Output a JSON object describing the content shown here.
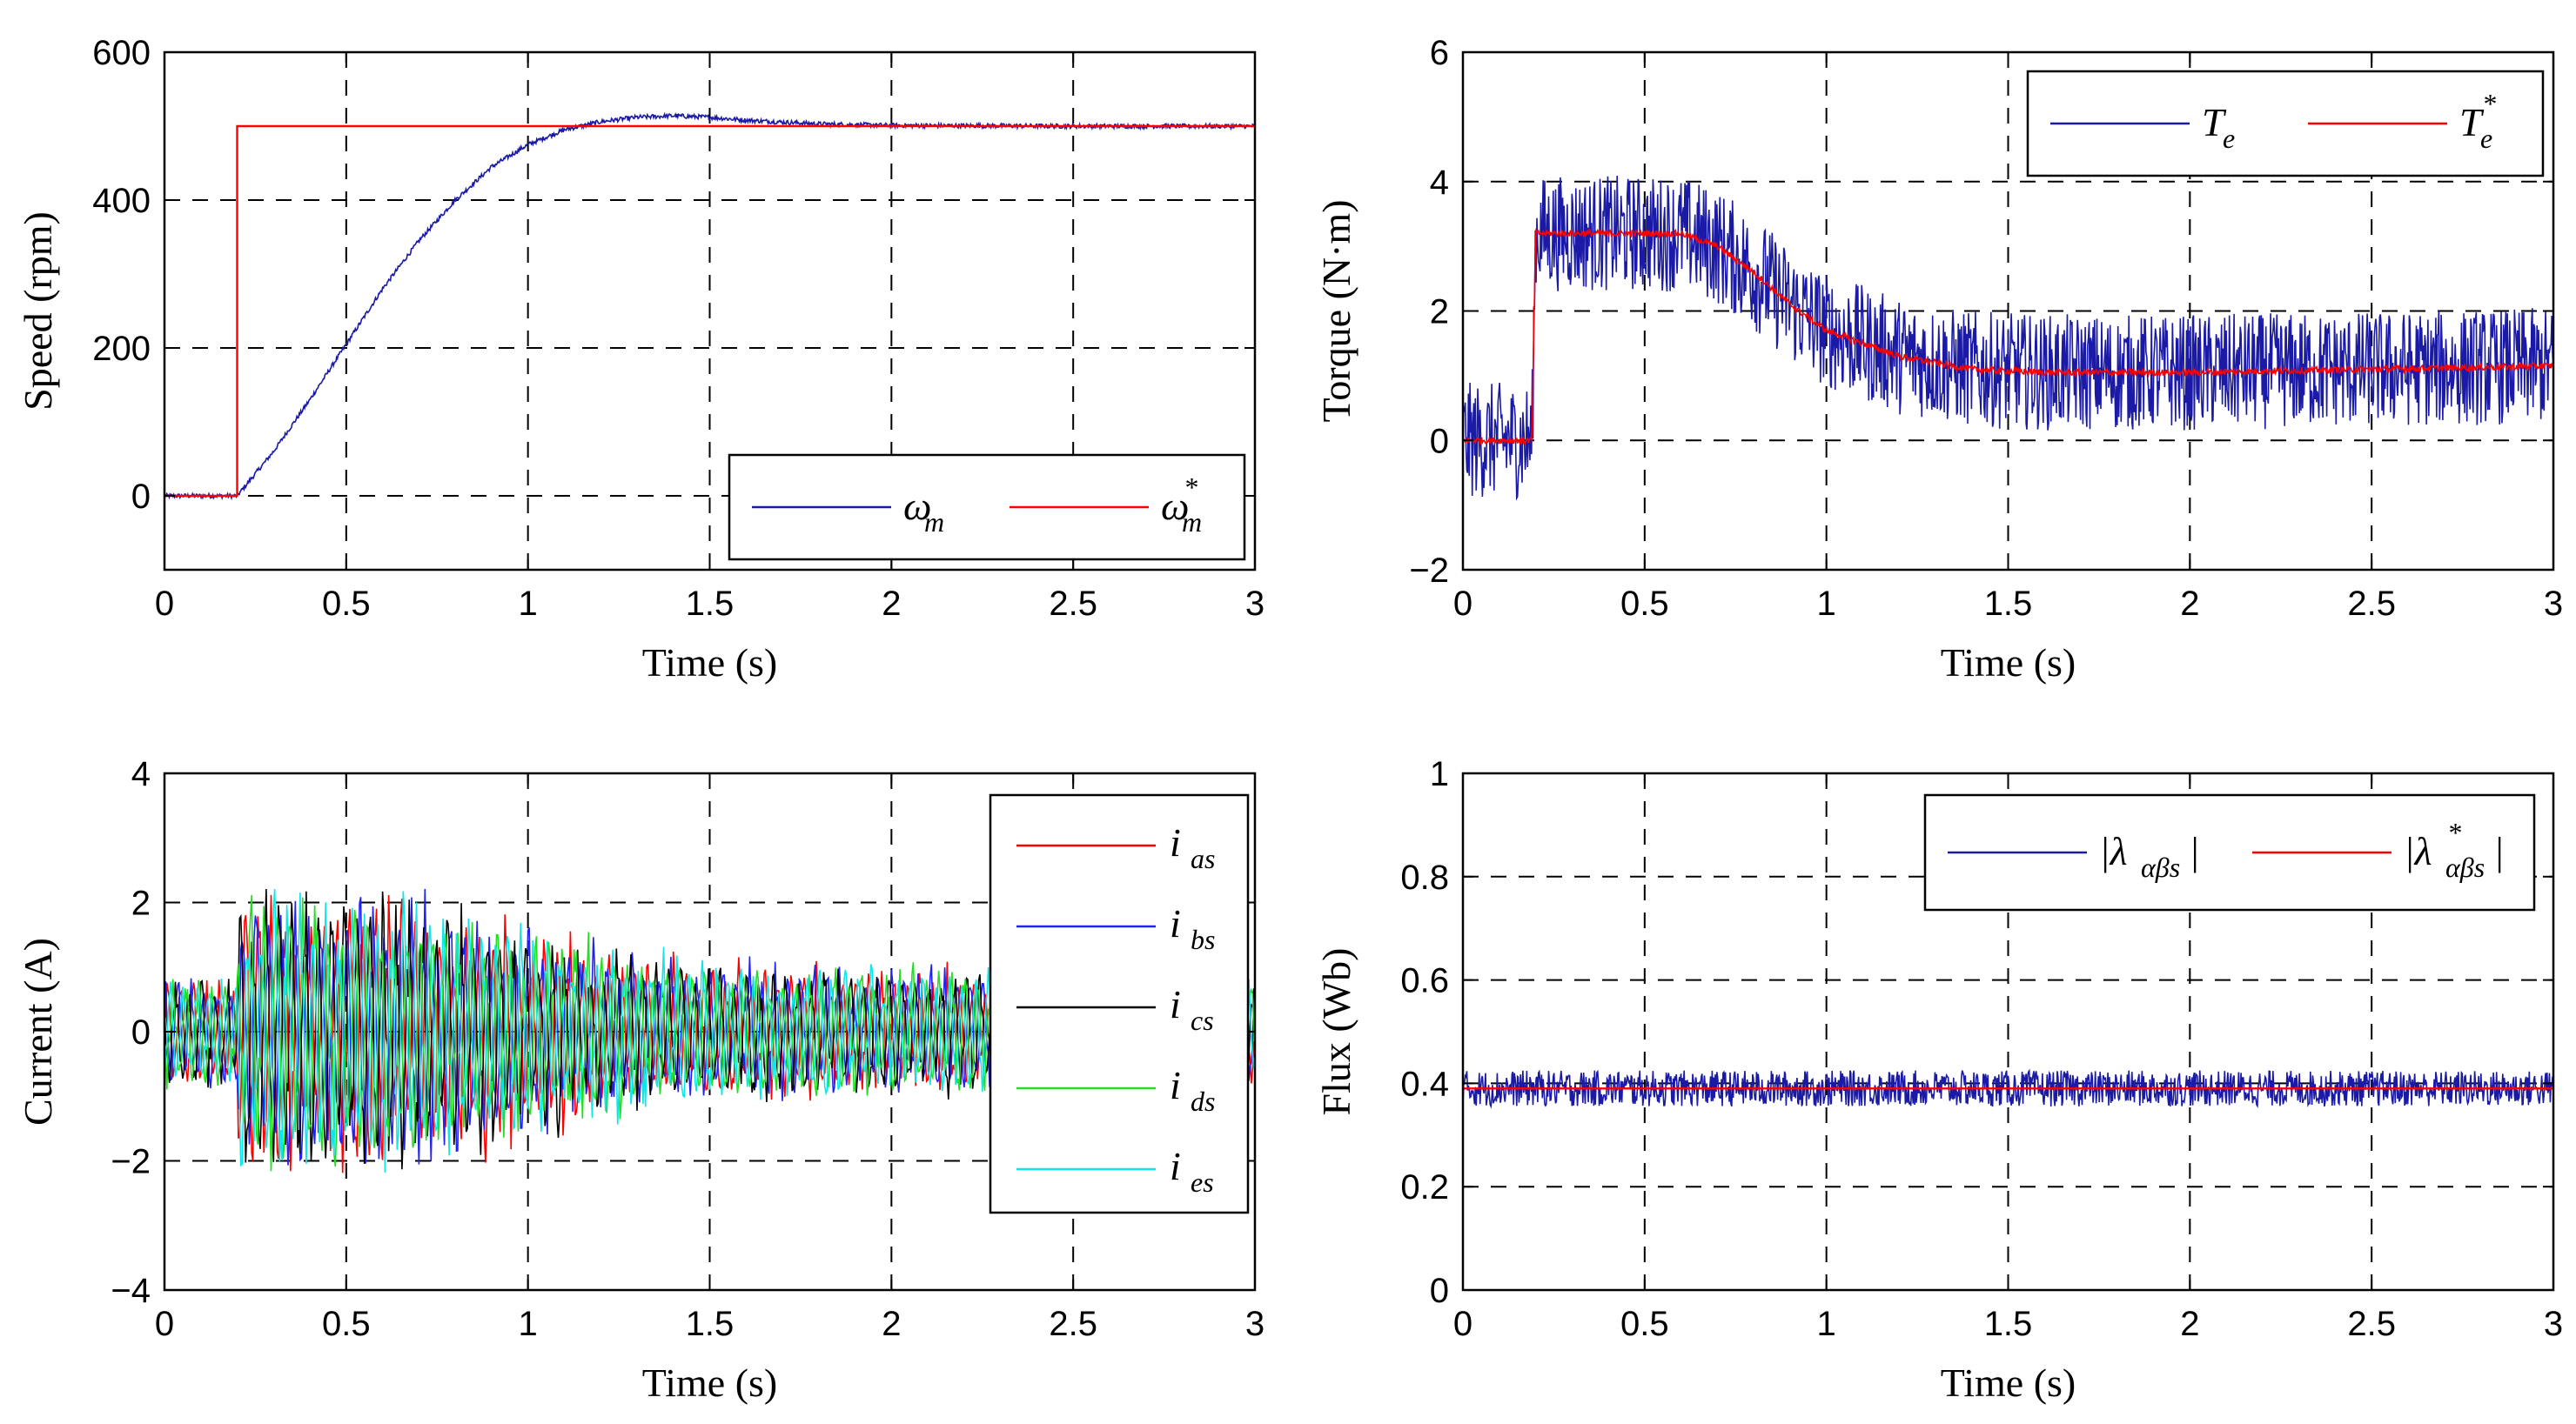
{
  "chart_data": [
    {
      "type": "line",
      "title": "",
      "xlabel": "Time (s)",
      "ylabel": "Speed (rpm)",
      "xlim": [
        0,
        3
      ],
      "ylim": [
        -100,
        600
      ],
      "xticks": [
        "0",
        "0.5",
        "1",
        "1.5",
        "2",
        "2.5",
        "3"
      ],
      "yticks": [
        "600",
        "400",
        "200",
        "0"
      ],
      "ytick_values": [
        600,
        400,
        200,
        0
      ],
      "grid": true,
      "legend_position": "bottom-right",
      "series": [
        {
          "name": "ω_m",
          "legend_main": "ω",
          "legend_sub": "m",
          "legend_sup": "",
          "color": "#1a1aa6",
          "points": [
            [
              0,
              0
            ],
            [
              0.2,
              0
            ],
            [
              0.3,
              60
            ],
            [
              0.4,
              130
            ],
            [
              0.5,
              205
            ],
            [
              0.6,
              280
            ],
            [
              0.7,
              345
            ],
            [
              0.8,
              400
            ],
            [
              0.9,
              445
            ],
            [
              1.0,
              475
            ],
            [
              1.1,
              495
            ],
            [
              1.2,
              506
            ],
            [
              1.3,
              512
            ],
            [
              1.4,
              514
            ],
            [
              1.5,
              512
            ],
            [
              1.6,
              508
            ],
            [
              1.8,
              503
            ],
            [
              2.0,
              501
            ],
            [
              2.5,
              500
            ],
            [
              3.0,
              500
            ]
          ],
          "noise": 3
        },
        {
          "name": "ω_m*",
          "legend_main": "ω",
          "legend_sub": "m",
          "legend_sup": "*",
          "color": "#ff0000",
          "points": [
            [
              0,
              0
            ],
            [
              0.2,
              0
            ],
            [
              0.2,
              500
            ],
            [
              3.0,
              500
            ]
          ],
          "noise": 0
        }
      ]
    },
    {
      "type": "line",
      "title": "",
      "xlabel": "Time (s)",
      "ylabel": "Torque (N·m)",
      "xlim": [
        0,
        3
      ],
      "ylim": [
        -2,
        6
      ],
      "xticks": [
        "0",
        "0.5",
        "1",
        "1.5",
        "2",
        "2.5",
        "3"
      ],
      "yticks": [
        "6",
        "4",
        "2",
        "0",
        "−2"
      ],
      "ytick_values": [
        6,
        4,
        2,
        0,
        -2
      ],
      "grid": true,
      "legend_position": "top-right",
      "series": [
        {
          "name": "T_e",
          "legend_main": "T",
          "legend_sub": "e",
          "legend_sup": "",
          "color": "#1a1aa6",
          "points": [
            [
              0,
              0
            ],
            [
              0.19,
              0
            ],
            [
              0.2,
              3.2
            ],
            [
              0.6,
              3.2
            ],
            [
              0.7,
              3.0
            ],
            [
              0.8,
              2.6
            ],
            [
              0.9,
              2.1
            ],
            [
              1.0,
              1.7
            ],
            [
              1.2,
              1.3
            ],
            [
              1.4,
              1.1
            ],
            [
              1.6,
              1.05
            ],
            [
              2.0,
              1.05
            ],
            [
              2.5,
              1.1
            ],
            [
              3.0,
              1.15
            ]
          ],
          "noise": 0.9
        },
        {
          "name": "T_e*",
          "legend_main": "T",
          "legend_sub": "e",
          "legend_sup": "*",
          "color": "#ff0000",
          "points": [
            [
              0,
              0
            ],
            [
              0.19,
              0
            ],
            [
              0.2,
              3.2
            ],
            [
              0.6,
              3.2
            ],
            [
              0.7,
              3.0
            ],
            [
              0.8,
              2.6
            ],
            [
              0.9,
              2.1
            ],
            [
              1.0,
              1.7
            ],
            [
              1.2,
              1.3
            ],
            [
              1.4,
              1.1
            ],
            [
              1.6,
              1.05
            ],
            [
              2.0,
              1.05
            ],
            [
              2.5,
              1.1
            ],
            [
              3.0,
              1.15
            ]
          ],
          "noise": 0.05
        }
      ]
    },
    {
      "type": "line",
      "title": "",
      "xlabel": "Time (s)",
      "ylabel": "Current (A)",
      "xlim": [
        0,
        3
      ],
      "ylim": [
        -4,
        4
      ],
      "xticks": [
        "0",
        "0.5",
        "1",
        "1.5",
        "2",
        "2.5",
        "3"
      ],
      "yticks": [
        "4",
        "2",
        "0",
        "−2",
        "−4"
      ],
      "ytick_values": [
        4,
        2,
        0,
        -2,
        -4
      ],
      "grid": true,
      "legend_position": "right",
      "envelope": [
        [
          0,
          0.8
        ],
        [
          0.2,
          0.8
        ],
        [
          0.2,
          2.0
        ],
        [
          0.6,
          2.0
        ],
        [
          0.8,
          1.8
        ],
        [
          1.0,
          1.5
        ],
        [
          1.2,
          1.25
        ],
        [
          1.5,
          1.0
        ],
        [
          2.0,
          0.9
        ],
        [
          3.0,
          0.9
        ]
      ],
      "series": [
        {
          "name": "i_as",
          "legend_main": "i",
          "legend_sub": "as",
          "legend_sup": "",
          "color": "#ff0000"
        },
        {
          "name": "i_bs",
          "legend_main": "i",
          "legend_sub": "bs",
          "legend_sup": "",
          "color": "#2222ee"
        },
        {
          "name": "i_cs",
          "legend_main": "i",
          "legend_sub": "cs",
          "legend_sup": "",
          "color": "#000000"
        },
        {
          "name": "i_ds",
          "legend_main": "i",
          "legend_sub": "ds",
          "legend_sup": "",
          "color": "#22dd22"
        },
        {
          "name": "i_es",
          "legend_main": "i",
          "legend_sub": "es",
          "legend_sup": "",
          "color": "#11e6e6"
        }
      ]
    },
    {
      "type": "line",
      "title": "",
      "xlabel": "Time (s)",
      "ylabel": "Flux (Wb)",
      "xlim": [
        0,
        3
      ],
      "ylim": [
        0,
        1
      ],
      "xticks": [
        "0",
        "0.5",
        "1",
        "1.5",
        "2",
        "2.5",
        "3"
      ],
      "yticks": [
        "1",
        "0.8",
        "0.6",
        "0.4",
        "0.2",
        "0"
      ],
      "ytick_values": [
        1,
        0.8,
        0.6,
        0.4,
        0.2,
        0
      ],
      "grid": true,
      "legend_position": "top-right",
      "series": [
        {
          "name": "|λ_αβs|",
          "legend_main": "|λ",
          "legend_sub": "αβs",
          "legend_sup": "",
          "legend_tail": "|",
          "color": "#1a1aa6",
          "points": [
            [
              0,
              0.39
            ],
            [
              3,
              0.39
            ]
          ],
          "noise": 0.035
        },
        {
          "name": "|λ_αβs*|",
          "legend_main": "|λ",
          "legend_sub": "αβs",
          "legend_sup": "*",
          "legend_tail": "|",
          "color": "#ff0000",
          "points": [
            [
              0,
              0.39
            ],
            [
              3,
              0.39
            ]
          ],
          "noise": 0
        }
      ]
    }
  ]
}
